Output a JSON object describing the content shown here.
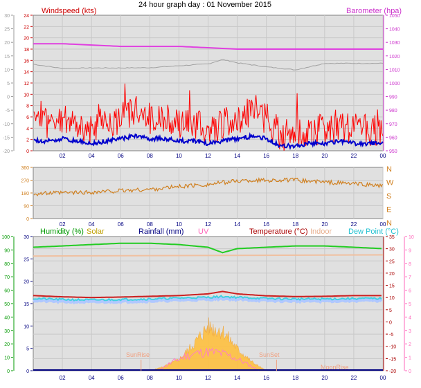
{
  "page": {
    "title": "24 hour graph day : 01 November 2015"
  },
  "colors": {
    "wind_speed": "#ff0000",
    "wind_avg": "#0000cc",
    "barometer": "#e040e0",
    "temp_sensor": "#a0a0a0",
    "direction": "#d08020",
    "humidity": "#22cc22",
    "solar": "#ffc040",
    "rainfall": "#000080",
    "uv": "#ff80c0",
    "temperature": "#cc2020",
    "indoor": "#f0c0a0",
    "dewpoint": "#40d0e0",
    "dewpoint_fill": "#b0c8ff"
  },
  "legends": {
    "windspeed": "Windspeed (kts)",
    "barometer": "Barometer (hpa)",
    "humidity": "Humidity (%)",
    "solar": "Solar",
    "rainfall": "Rainfall (mm)",
    "uv": "UV",
    "temperature": "Temperature (°C)",
    "indoor": "Indoor",
    "dewpoint": "Dew Point (°C)"
  },
  "annotations": {
    "sunrise": "SunRise",
    "sunset": "SunSet",
    "moonrise": "MoonRise"
  },
  "compass": [
    "N",
    "W",
    "S",
    "E",
    "N"
  ],
  "chart_data": [
    {
      "type": "line",
      "title": "24 hour graph day : 01 November 2015",
      "x_ticks": [
        "02",
        "04",
        "06",
        "08",
        "10",
        "12",
        "14",
        "16",
        "18",
        "20",
        "22",
        "00"
      ],
      "y_left_ticks": [
        "0",
        "2",
        "4",
        "6",
        "8",
        "10",
        "12",
        "14",
        "16",
        "18",
        "20",
        "22",
        "24"
      ],
      "y_outer_ticks": [
        "-20",
        "-15",
        "-10",
        "-5",
        "0",
        "5",
        "10",
        "15",
        "20",
        "25",
        "30"
      ],
      "y_right_ticks": [
        "950",
        "960",
        "970",
        "980",
        "990",
        "1000",
        "1010",
        "1020",
        "1030",
        "1040",
        "1050"
      ],
      "ylim_left": [
        0,
        25
      ],
      "ylim_right": [
        950,
        1050
      ],
      "grid": true,
      "series": [
        {
          "name": "Windspeed (kts)",
          "x": [
            0,
            1,
            2,
            3,
            4,
            5,
            6,
            7,
            8,
            9,
            10,
            11,
            12,
            13,
            14,
            15,
            16,
            17,
            18,
            19,
            20,
            21,
            22,
            23,
            24
          ],
          "values": [
            4,
            4,
            5,
            4,
            3,
            4,
            5,
            6,
            5,
            5,
            4,
            4,
            3,
            4,
            5,
            6,
            5,
            2,
            2,
            3,
            3,
            4,
            3,
            3,
            3
          ]
        },
        {
          "name": "Barometer (hpa)",
          "x": [
            0,
            2,
            4,
            6,
            8,
            10,
            12,
            14,
            16,
            18,
            20,
            22,
            24
          ],
          "values": [
            1029,
            1029,
            1028,
            1027,
            1027,
            1027,
            1026,
            1025,
            1025,
            1025,
            1025,
            1025,
            1025
          ]
        }
      ]
    },
    {
      "type": "line",
      "x_ticks": [
        "02",
        "04",
        "06",
        "08",
        "10",
        "12",
        "14",
        "16",
        "18",
        "20",
        "22",
        "00"
      ],
      "y_ticks": [
        "0",
        "90",
        "180",
        "270",
        "360"
      ],
      "ylim": [
        0,
        360
      ],
      "grid": true,
      "series": [
        {
          "name": "Wind direction",
          "x": [
            0,
            2,
            4,
            6,
            8,
            10,
            12,
            14,
            16,
            18,
            20,
            22,
            24
          ],
          "values": [
            175,
            180,
            185,
            195,
            205,
            225,
            240,
            265,
            270,
            270,
            255,
            245,
            230
          ]
        }
      ]
    },
    {
      "type": "line",
      "x_ticks": [
        "02",
        "04",
        "06",
        "08",
        "10",
        "12",
        "14",
        "16",
        "18",
        "20",
        "22",
        "00"
      ],
      "y_humidity_ticks": [
        "0",
        "10",
        "20",
        "30",
        "40",
        "50",
        "60",
        "70",
        "80",
        "90",
        "100"
      ],
      "y_rain_ticks": [
        "0",
        "5",
        "10",
        "15",
        "20",
        "25",
        "30"
      ],
      "y_temp_ticks": [
        "-20",
        "-15",
        "-10",
        "-5",
        "0",
        "5",
        "10",
        "15",
        "20",
        "25",
        "30",
        "35"
      ],
      "y_uv_ticks": [
        "0",
        "1",
        "2",
        "3",
        "4",
        "5",
        "6",
        "7",
        "8",
        "9",
        "10"
      ],
      "ylim_temp": [
        -20,
        35
      ],
      "grid": true,
      "series": [
        {
          "name": "Humidity (%)",
          "x": [
            0,
            2,
            4,
            6,
            8,
            10,
            12,
            13,
            14,
            16,
            18,
            20,
            22,
            24
          ],
          "values": [
            92,
            93,
            94,
            95,
            95,
            94,
            92,
            88,
            91,
            92,
            93,
            93,
            92,
            91
          ]
        },
        {
          "name": "Temperature (°C)",
          "x": [
            0,
            2,
            4,
            6,
            8,
            10,
            12,
            13,
            14,
            16,
            18,
            20,
            22,
            24
          ],
          "values": [
            10.8,
            10.3,
            10,
            10.2,
            10.5,
            10.8,
            11.5,
            12.5,
            11.5,
            10.7,
            10.4,
            10.5,
            10.8,
            10.8
          ]
        },
        {
          "name": "Dew Point (°C)",
          "x": [
            0,
            2,
            4,
            6,
            8,
            10,
            12,
            13,
            14,
            16,
            18,
            20,
            22,
            24
          ],
          "values": [
            9.6,
            9.2,
            9,
            9.2,
            9.4,
            9.8,
            10.1,
            10.4,
            10.1,
            9.6,
            9.4,
            9.4,
            9.6,
            9.6
          ]
        },
        {
          "name": "Indoor",
          "x": [
            0,
            24
          ],
          "values": [
            27,
            27.5
          ]
        },
        {
          "name": "Solar",
          "x": [
            8,
            9,
            10,
            11,
            12,
            13,
            14,
            15,
            16
          ],
          "values": [
            0,
            2,
            5,
            12,
            20,
            18,
            10,
            4,
            0
          ]
        },
        {
          "name": "Rainfall (mm)",
          "x": [
            0,
            24
          ],
          "values": [
            0,
            0
          ]
        }
      ]
    }
  ]
}
